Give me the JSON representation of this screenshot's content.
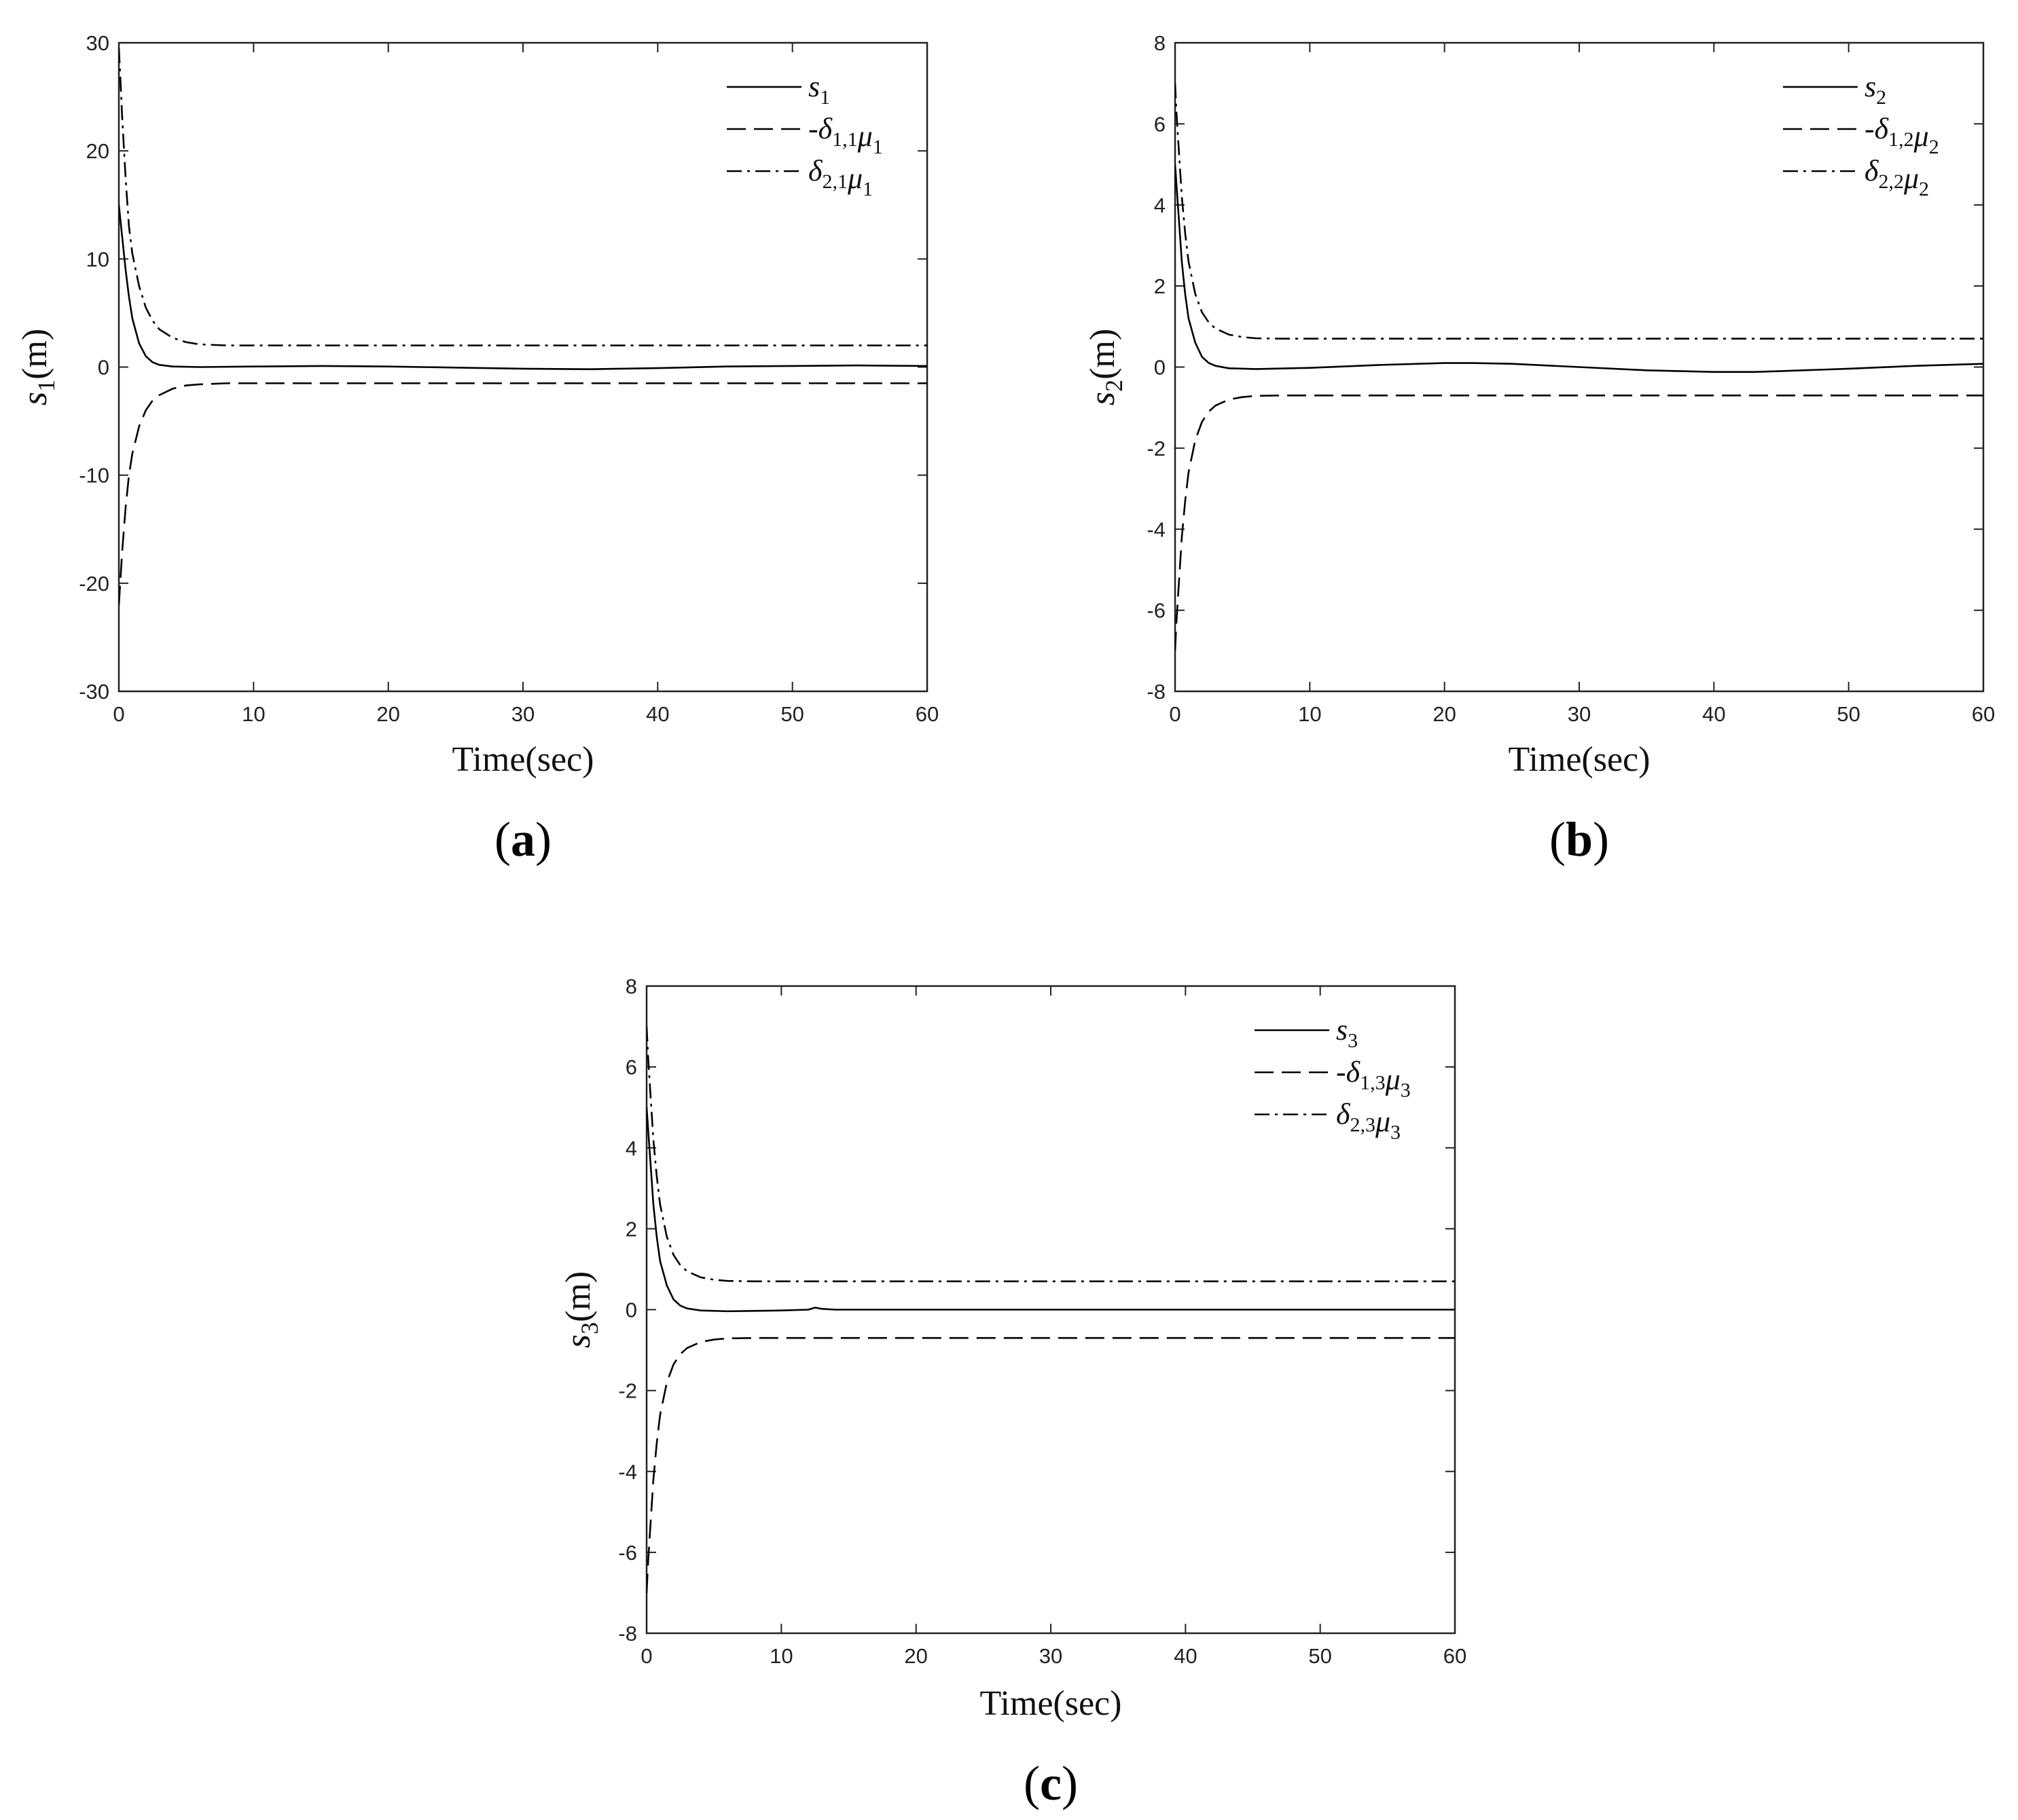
{
  "colors": {
    "axis": "#222222",
    "line": "#000000",
    "background": "#ffffff"
  },
  "chart_data": [
    {
      "type": "line",
      "panel_label": "(a)",
      "xlabel": "Time(sec)",
      "ylabel": {
        "main": "s",
        "sub": "1",
        "unit": "(m)"
      },
      "xlim": [
        0,
        60
      ],
      "ylim": [
        -30,
        30
      ],
      "xticks": [
        0,
        10,
        20,
        30,
        40,
        50,
        60
      ],
      "yticks": [
        -30,
        -20,
        -10,
        0,
        10,
        20,
        30
      ],
      "grid": false,
      "legend_position": "top-right",
      "series": [
        {
          "name": "s1",
          "legend": {
            "prefix": "",
            "parts": [
              [
                "s",
                "1"
              ]
            ]
          },
          "style": "solid",
          "x": [
            0,
            0.25,
            0.5,
            0.75,
            1,
            1.5,
            2,
            2.5,
            3,
            4,
            6,
            10,
            15,
            20,
            25,
            30,
            35,
            40,
            45,
            50,
            55,
            60
          ],
          "y": [
            15,
            12,
            9,
            6.5,
            4.5,
            2.2,
            1.0,
            0.45,
            0.2,
            0.05,
            0.0,
            0.05,
            0.1,
            0.05,
            -0.05,
            -0.15,
            -0.2,
            -0.1,
            0.05,
            0.1,
            0.15,
            0.1
          ]
        },
        {
          "name": "-δ1,1μ1",
          "legend": {
            "prefix": "-",
            "parts": [
              [
                "δ",
                "1,1"
              ],
              [
                "μ",
                "1"
              ]
            ]
          },
          "style": "dashed",
          "x": [
            0,
            0.1,
            0.25,
            0.5,
            0.75,
            1,
            1.5,
            2,
            2.5,
            3,
            4,
            5,
            6,
            8,
            10,
            20,
            30,
            40,
            50,
            60
          ],
          "y": [
            -22,
            -20,
            -17,
            -13,
            -10,
            -8,
            -5.5,
            -4,
            -3.1,
            -2.6,
            -2.0,
            -1.7,
            -1.6,
            -1.5,
            -1.5,
            -1.5,
            -1.5,
            -1.5,
            -1.5,
            -1.5
          ]
        },
        {
          "name": "δ2,1μ1",
          "legend": {
            "prefix": "",
            "parts": [
              [
                "δ",
                "2,1"
              ],
              [
                "μ",
                "1"
              ]
            ]
          },
          "style": "dashdot",
          "x": [
            0,
            0.1,
            0.25,
            0.5,
            0.75,
            1,
            1.5,
            2,
            2.5,
            3,
            4,
            5,
            6,
            8,
            10,
            20,
            30,
            40,
            50,
            60
          ],
          "y": [
            29.5,
            27,
            23,
            17.5,
            13,
            10.5,
            7.5,
            5.5,
            4.3,
            3.5,
            2.7,
            2.3,
            2.1,
            2.0,
            2.0,
            2.0,
            2.0,
            2.0,
            2.0,
            2.0
          ]
        }
      ]
    },
    {
      "type": "line",
      "panel_label": "(b)",
      "xlabel": "Time(sec)",
      "ylabel": {
        "main": "s",
        "sub": "2",
        "unit": "(m)"
      },
      "xlim": [
        0,
        60
      ],
      "ylim": [
        -8,
        8
      ],
      "xticks": [
        0,
        10,
        20,
        30,
        40,
        50,
        60
      ],
      "yticks": [
        -8,
        -6,
        -4,
        -2,
        0,
        2,
        4,
        6,
        8
      ],
      "grid": false,
      "legend_position": "top-right",
      "series": [
        {
          "name": "s2",
          "legend": {
            "prefix": "",
            "parts": [
              [
                "s",
                "2"
              ]
            ]
          },
          "style": "solid",
          "x": [
            0,
            0.25,
            0.5,
            0.75,
            1,
            1.5,
            2,
            2.5,
            3,
            4,
            6,
            10,
            15,
            20,
            22,
            25,
            30,
            35,
            40,
            43,
            45,
            50,
            55,
            60
          ],
          "y": [
            5.0,
            3.8,
            2.6,
            1.8,
            1.2,
            0.6,
            0.25,
            0.1,
            0.03,
            -0.03,
            -0.05,
            -0.02,
            0.05,
            0.1,
            0.1,
            0.08,
            0.0,
            -0.08,
            -0.12,
            -0.12,
            -0.1,
            -0.04,
            0.03,
            0.08
          ]
        },
        {
          "name": "-δ1,2μ2",
          "legend": {
            "prefix": "-",
            "parts": [
              [
                "δ",
                "1,2"
              ],
              [
                "μ",
                "2"
              ]
            ]
          },
          "style": "dashed",
          "x": [
            0,
            0.1,
            0.25,
            0.5,
            0.75,
            1,
            1.5,
            2,
            2.5,
            3,
            4,
            5,
            6,
            8,
            10,
            20,
            30,
            40,
            50,
            60
          ],
          "y": [
            -7.0,
            -6.3,
            -5.5,
            -4.2,
            -3.3,
            -2.6,
            -1.8,
            -1.35,
            -1.1,
            -0.95,
            -0.8,
            -0.74,
            -0.71,
            -0.7,
            -0.7,
            -0.7,
            -0.7,
            -0.7,
            -0.7,
            -0.7
          ]
        },
        {
          "name": "δ2,2μ2",
          "legend": {
            "prefix": "",
            "parts": [
              [
                "δ",
                "2,2"
              ],
              [
                "μ",
                "2"
              ]
            ]
          },
          "style": "dashdot",
          "x": [
            0,
            0.1,
            0.25,
            0.5,
            0.75,
            1,
            1.5,
            2,
            2.5,
            3,
            4,
            5,
            6,
            8,
            10,
            20,
            30,
            40,
            50,
            60
          ],
          "y": [
            7.0,
            6.3,
            5.5,
            4.2,
            3.3,
            2.6,
            1.8,
            1.35,
            1.1,
            0.95,
            0.8,
            0.74,
            0.71,
            0.7,
            0.7,
            0.7,
            0.7,
            0.7,
            0.7,
            0.7
          ]
        }
      ]
    },
    {
      "type": "line",
      "panel_label": "(c)",
      "xlabel": "Time(sec)",
      "ylabel": {
        "main": "s",
        "sub": "3",
        "unit": "(m)"
      },
      "xlim": [
        0,
        60
      ],
      "ylim": [
        -8,
        8
      ],
      "xticks": [
        0,
        10,
        20,
        30,
        40,
        50,
        60
      ],
      "yticks": [
        -8,
        -6,
        -4,
        -2,
        0,
        2,
        4,
        6,
        8
      ],
      "grid": false,
      "legend_position": "top-right",
      "series": [
        {
          "name": "s3",
          "legend": {
            "prefix": "",
            "parts": [
              [
                "s",
                "3"
              ]
            ]
          },
          "style": "solid",
          "x": [
            0,
            0.25,
            0.5,
            0.75,
            1,
            1.5,
            2,
            2.5,
            3,
            4,
            6,
            8,
            10,
            12,
            12.5,
            13,
            14,
            20,
            30,
            40,
            50,
            60
          ],
          "y": [
            5.0,
            3.8,
            2.6,
            1.8,
            1.2,
            0.6,
            0.25,
            0.1,
            0.03,
            -0.02,
            -0.04,
            -0.03,
            -0.02,
            0.0,
            0.05,
            0.02,
            0.0,
            0.0,
            0.0,
            0.0,
            0.0,
            0.0
          ]
        },
        {
          "name": "-δ1,3μ3",
          "legend": {
            "prefix": "-",
            "parts": [
              [
                "δ",
                "1,3"
              ],
              [
                "μ",
                "3"
              ]
            ]
          },
          "style": "dashed",
          "x": [
            0,
            0.1,
            0.25,
            0.5,
            0.75,
            1,
            1.5,
            2,
            2.5,
            3,
            4,
            5,
            6,
            8,
            10,
            20,
            30,
            40,
            50,
            60
          ],
          "y": [
            -7.0,
            -6.3,
            -5.5,
            -4.2,
            -3.3,
            -2.6,
            -1.8,
            -1.35,
            -1.1,
            -0.95,
            -0.8,
            -0.74,
            -0.71,
            -0.7,
            -0.7,
            -0.7,
            -0.7,
            -0.7,
            -0.7,
            -0.7
          ]
        },
        {
          "name": "δ2,3μ3",
          "legend": {
            "prefix": "",
            "parts": [
              [
                "δ",
                "2,3"
              ],
              [
                "μ",
                "3"
              ]
            ]
          },
          "style": "dashdot",
          "x": [
            0,
            0.1,
            0.25,
            0.5,
            0.75,
            1,
            1.5,
            2,
            2.5,
            3,
            4,
            5,
            6,
            8,
            10,
            20,
            30,
            40,
            50,
            60
          ],
          "y": [
            7.0,
            6.3,
            5.5,
            4.2,
            3.3,
            2.6,
            1.8,
            1.35,
            1.1,
            0.95,
            0.8,
            0.74,
            0.71,
            0.7,
            0.7,
            0.7,
            0.7,
            0.7,
            0.7,
            0.7
          ]
        }
      ]
    }
  ]
}
